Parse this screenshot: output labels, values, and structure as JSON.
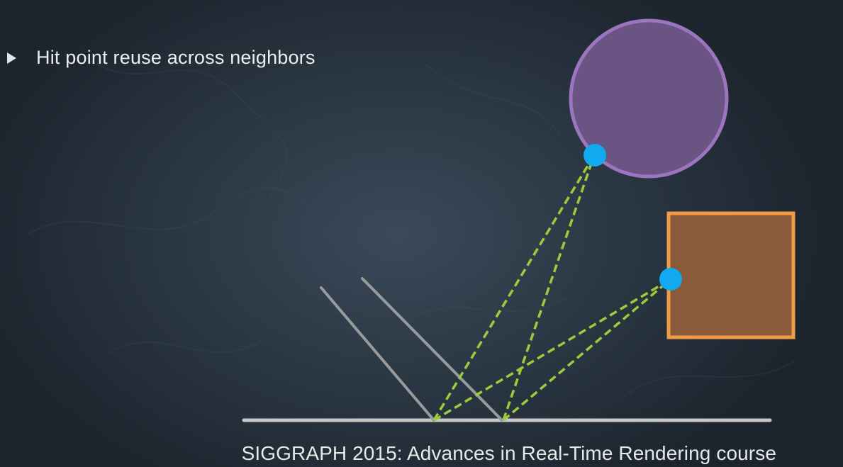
{
  "slide": {
    "bullet_text": "Hit point reuse across neighbors",
    "footer_text": "SIGGRAPH 2015: Advances in Real-Time Rendering course"
  },
  "diagram": {
    "sphere_color": "#6a5484",
    "sphere_stroke": "#9c74c0",
    "box_color": "#8a5a3a",
    "box_stroke": "#f29a44",
    "hit_point_color": "#11aaf0",
    "ray_color": "#9ccc3c",
    "surface_color": "#c8c8c8"
  }
}
